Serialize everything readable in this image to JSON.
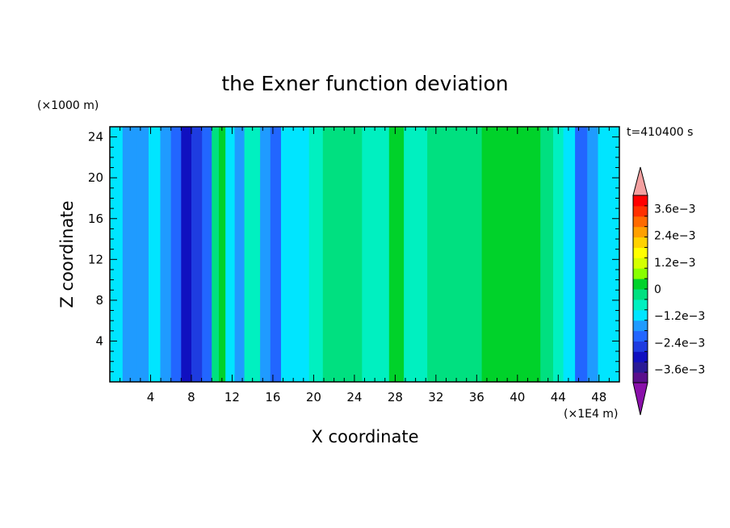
{
  "chart_data": {
    "type": "heatmap",
    "title": "the Exner function deviation",
    "xlabel": "X coordinate",
    "ylabel": "Z coordinate",
    "x_unit": "(×1E4 m)",
    "y_unit": "(×1000 m)",
    "time_label": "t=410400 s",
    "xlim": [
      0,
      50
    ],
    "ylim": [
      0,
      25
    ],
    "x_ticks": [
      "4",
      "8",
      "12",
      "16",
      "20",
      "24",
      "28",
      "32",
      "36",
      "40",
      "44",
      "48"
    ],
    "y_ticks": [
      "4",
      "8",
      "12",
      "16",
      "20",
      "24"
    ],
    "colorbar": {
      "min": -0.0042,
      "max": 0.0042,
      "step": 0.0006,
      "tick_labels": [
        "3.6e−3",
        "2.4e−3",
        "1.2e−3",
        "0",
        "−1.2e−3",
        "−2.4e−3",
        "−3.6e−3"
      ],
      "colors": [
        "#5a0f8c",
        "#2a1a96",
        "#1010c0",
        "#1e3ce0",
        "#2266ff",
        "#1f9bff",
        "#00e5ff",
        "#00f0c0",
        "#00e080",
        "#00d22a",
        "#88ff00",
        "#d4ff00",
        "#ffff00",
        "#ffd200",
        "#ffa000",
        "#ff6a00",
        "#ff3000",
        "#ff0000"
      ],
      "over_color": "#f4a0a0",
      "under_color": "#8a10aa"
    },
    "columns": [
      {
        "x": 0.5,
        "v": -0.0006
      },
      {
        "x": 2.0,
        "v": -0.001
      },
      {
        "x": 3.2,
        "v": -0.0012
      },
      {
        "x": 4.4,
        "v": -0.0004
      },
      {
        "x": 5.5,
        "v": -0.0012
      },
      {
        "x": 6.5,
        "v": -0.0018
      },
      {
        "x": 7.5,
        "v": -0.0026
      },
      {
        "x": 8.5,
        "v": -0.0024
      },
      {
        "x": 9.6,
        "v": -0.0014
      },
      {
        "x": 10.4,
        "v": 0.0006
      },
      {
        "x": 11.0,
        "v": 0.0012
      },
      {
        "x": 11.7,
        "v": -0.0004
      },
      {
        "x": 12.8,
        "v": -0.0012
      },
      {
        "x": 13.6,
        "v": 0.0002
      },
      {
        "x": 14.3,
        "v": 0.0004
      },
      {
        "x": 15.2,
        "v": -0.0008
      },
      {
        "x": 16.3,
        "v": -0.0016
      },
      {
        "x": 17.3,
        "v": -0.0004
      },
      {
        "x": 18.8,
        "v": -0.0006
      },
      {
        "x": 20.3,
        "v": 0.0004
      },
      {
        "x": 21.5,
        "v": 0.0008
      },
      {
        "x": 22.8,
        "v": 0.001
      },
      {
        "x": 24.3,
        "v": 0.0006
      },
      {
        "x": 25.2,
        "v": 0.0
      },
      {
        "x": 26.6,
        "v": 0.0004
      },
      {
        "x": 28.2,
        "v": 0.0012
      },
      {
        "x": 29.5,
        "v": 0.0004
      },
      {
        "x": 30.5,
        "v": 0.0
      },
      {
        "x": 31.8,
        "v": 0.0008
      },
      {
        "x": 33.5,
        "v": 0.001
      },
      {
        "x": 35.5,
        "v": 0.001
      },
      {
        "x": 37.5,
        "v": 0.0012
      },
      {
        "x": 39.5,
        "v": 0.0014
      },
      {
        "x": 41.5,
        "v": 0.0012
      },
      {
        "x": 43.0,
        "v": 0.0008
      },
      {
        "x": 44.0,
        "v": 0.0002
      },
      {
        "x": 45.0,
        "v": -0.0006
      },
      {
        "x": 46.3,
        "v": -0.0016
      },
      {
        "x": 47.4,
        "v": -0.0012
      },
      {
        "x": 48.4,
        "v": -0.0004
      },
      {
        "x": 49.5,
        "v": -0.0006
      }
    ]
  }
}
